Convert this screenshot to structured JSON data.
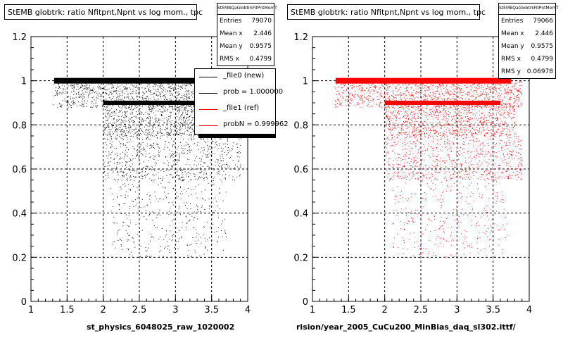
{
  "chart_data": [
    {
      "type": "scatter",
      "title": "StEMB globtrk: ratio Nfitpnt,Npnt vs log mom., tpc",
      "xlim": [
        1,
        4
      ],
      "ylim": [
        0,
        1.2
      ],
      "x_ticks": [
        "1",
        "1.5",
        "2",
        "2.5",
        "3",
        "3.5",
        "4"
      ],
      "y_ticks": [
        "0",
        "0.2",
        "0.4",
        "0.6",
        "0.8",
        "1",
        "1.2"
      ],
      "grid": true,
      "marker_color": "#000000",
      "stats": {
        "name": "StEMBQaGlobtrkFitPntMomT",
        "entries_label": "Entries",
        "entries": "79070",
        "meanx_label": "Mean x",
        "meanx": "2.446",
        "meany_label": "Mean y",
        "meany": "0.9575",
        "rmsx_label": "RMS x",
        "rmsx": "0.4799"
      },
      "bottom_label": "st_physics_6048025_raw_1020002"
    },
    {
      "type": "scatter",
      "title": "StEMB globtrk: ratio Nfitpnt,Npnt vs log mom., tpc",
      "xlim": [
        1,
        4
      ],
      "ylim": [
        0,
        1.2
      ],
      "x_ticks": [
        "1",
        "1.5",
        "2",
        "2.5",
        "3",
        "3.5",
        "4"
      ],
      "y_ticks": [
        "0",
        "0.2",
        "0.4",
        "0.6",
        "0.8",
        "1",
        "1.2"
      ],
      "grid": true,
      "marker_color": "#ff0000",
      "stats": {
        "name": "StEMBQaGlobtrkFitPntMomT",
        "entries_label": "Entries",
        "entries": "79066",
        "meanx_label": "Mean x",
        "meanx": "2.446",
        "meany_label": "Mean y",
        "meany": "0.9575",
        "rmsx_label": "RMS x",
        "rmsx": "0.4799",
        "rmsy_label": "RMS y",
        "rmsy": "0.06978"
      },
      "bottom_label": "rision/year_2005_CuCu200_MinBias_daq_sl302.ittf/"
    }
  ],
  "legend": {
    "items": [
      {
        "label": "_file0 (new)",
        "color": "#000000"
      },
      {
        "label": "prob = 1.000000",
        "color": "#000000"
      },
      {
        "label": "_file1 (ref)",
        "color": "#ff0000"
      },
      {
        "label": "probN = 0.999962",
        "color": "#ff0000"
      }
    ]
  }
}
